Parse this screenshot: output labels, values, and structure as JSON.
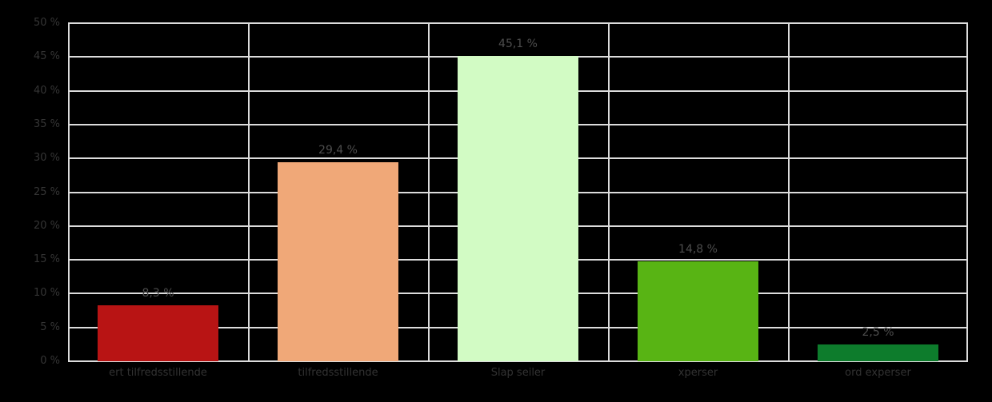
{
  "chart_data": {
    "type": "bar",
    "title": "",
    "xlabel": "",
    "ylabel": "",
    "categories": [
      "ert tilfredsstillende",
      "tilfredsstillende",
      "Slap seiler",
      "xperser",
      "ord experser"
    ],
    "values": [
      8.3,
      29.4,
      45.1,
      14.8,
      2.5
    ],
    "value_labels": [
      "8,3 %",
      "29,4 %",
      "45,1 %",
      "14,8 %",
      "2,5 %"
    ],
    "bar_colors": [
      "#b81414",
      "#f0a878",
      "#d2fbc4",
      "#58b414",
      "#0d7c2c"
    ],
    "ylim": [
      0,
      50
    ],
    "ytick_labels": [
      "0 %",
      "5 %",
      "10 %",
      "15 %",
      "20 %",
      "25 %",
      "30 %",
      "35 %",
      "40 %",
      "45 %",
      "50 %"
    ],
    "legend": "none",
    "grid": "horizontal gridlines every 5% plus vertical column separators",
    "colors": {
      "background": "#000000",
      "grid": "#dcdcdc",
      "tick_text": "#353535",
      "value_text": "#4d4d4d",
      "category_text": "#323232"
    }
  }
}
